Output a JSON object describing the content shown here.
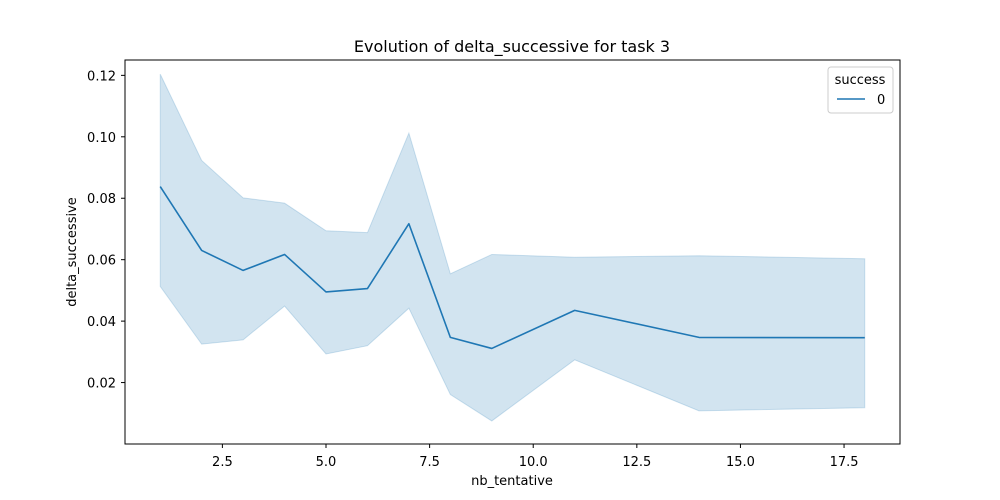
{
  "chart_data": {
    "type": "line",
    "title": "Evolution of delta_successive for task 3",
    "xlabel": "nb_tentative",
    "ylabel": "delta_successive",
    "xlim": [
      0.15,
      18.85
    ],
    "ylim": [
      0.0,
      0.125
    ],
    "xticks": [
      2.5,
      5.0,
      7.5,
      10.0,
      12.5,
      15.0,
      17.5
    ],
    "xtick_labels": [
      "2.5",
      "5.0",
      "7.5",
      "10.0",
      "12.5",
      "15.0",
      "17.5"
    ],
    "yticks": [
      0.02,
      0.04,
      0.06,
      0.08,
      0.1,
      0.12
    ],
    "ytick_labels": [
      "0.02",
      "0.04",
      "0.06",
      "0.08",
      "0.10",
      "0.12"
    ],
    "legend": {
      "title": "success",
      "placement": "top-right",
      "entries": [
        "0"
      ]
    },
    "colors": {
      "line": "#1f77b4",
      "band": "#1f77b4"
    },
    "series": [
      {
        "name": "0",
        "x": [
          1,
          2,
          3,
          4,
          5,
          6,
          7,
          8,
          9,
          11,
          14,
          18
        ],
        "values": [
          0.0838,
          0.063,
          0.0565,
          0.0617,
          0.0495,
          0.0506,
          0.0717,
          0.0347,
          0.0311,
          0.0435,
          0.0347,
          0.0346
        ],
        "ci_lower": [
          0.0513,
          0.0325,
          0.0339,
          0.0449,
          0.0293,
          0.032,
          0.0442,
          0.0161,
          0.0075,
          0.0274,
          0.0108,
          0.0118
        ],
        "ci_upper": [
          0.1204,
          0.0923,
          0.0801,
          0.0784,
          0.0694,
          0.0688,
          0.1012,
          0.0554,
          0.0617,
          0.0608,
          0.0613,
          0.0603
        ]
      }
    ]
  }
}
